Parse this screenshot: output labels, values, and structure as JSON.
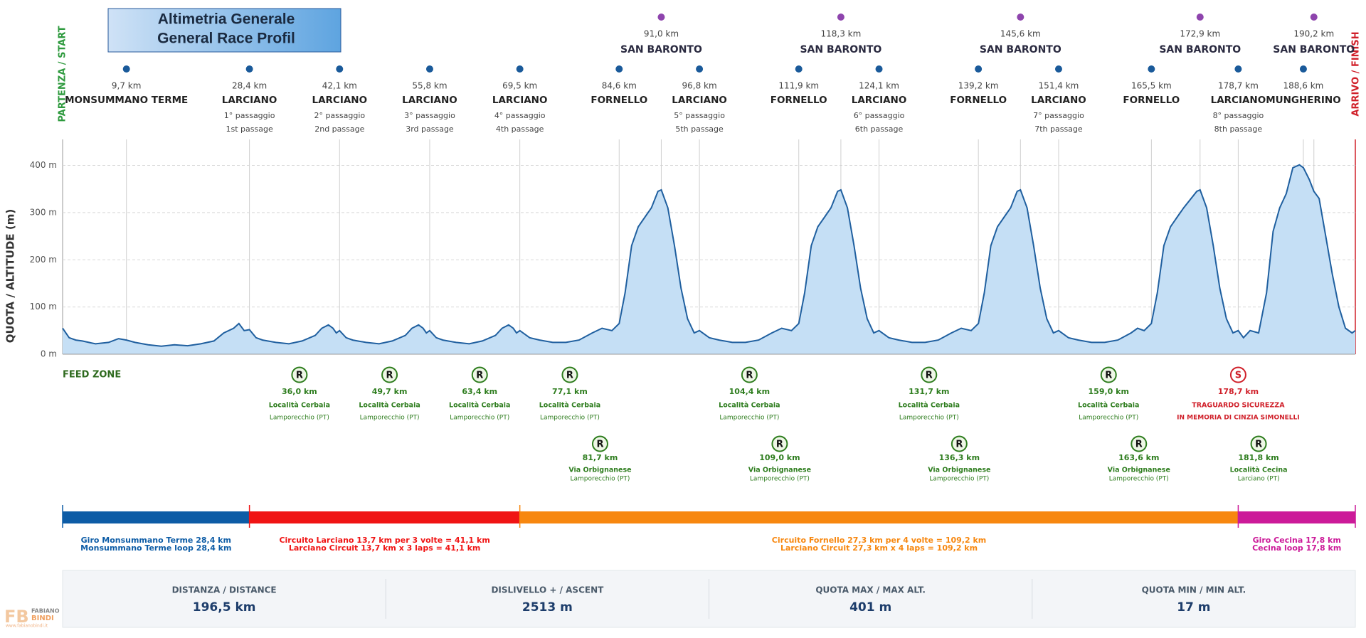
{
  "chart_data": {
    "type": "area",
    "title": [
      "Altimetria Generale",
      "General Race Profil"
    ],
    "ylabel": "QUOTA / ALTITUDE (m)",
    "start_label": "PARTENZA / START",
    "finish_label": "ARRIVO / FINISH",
    "color": "#1f5f9f",
    "fill": "#c5dff5",
    "grid": true,
    "xlim": [
      0,
      196.5
    ],
    "ylim": [
      0,
      455
    ],
    "yticks": [
      {
        "value": 0,
        "label": "0 m"
      },
      {
        "value": 100,
        "label": "100 m"
      },
      {
        "value": 200,
        "label": "200 m"
      },
      {
        "value": 300,
        "label": "300 m"
      },
      {
        "value": 400,
        "label": "400 m"
      }
    ],
    "x": [
      0,
      1,
      2,
      3,
      5,
      7,
      8.5,
      9.7,
      11,
      13,
      15,
      17,
      19,
      21,
      23,
      24.5,
      26,
      26.8,
      27.6,
      28.4,
      29.4,
      30.4,
      32.4,
      34.4,
      36.4,
      38.4,
      39.4,
      40.4,
      41.1,
      41.6,
      42.1,
      43.1,
      44.1,
      46.1,
      48.1,
      50.1,
      52.1,
      53.1,
      54.1,
      54.8,
      55.3,
      55.8,
      56.8,
      57.8,
      59.8,
      61.8,
      63.8,
      65.8,
      66.8,
      67.8,
      68.5,
      69,
      69.5,
      71,
      72.5,
      74.5,
      76.5,
      78.5,
      80.5,
      82,
      83.5,
      84.6,
      85.5,
      86.5,
      87.5,
      88.5,
      89.5,
      90.5,
      91,
      92,
      93,
      94,
      95,
      96,
      96.8,
      98.3,
      99.8,
      101.8,
      103.8,
      105.8,
      107.8,
      109.3,
      110.8,
      111.9,
      112.8,
      113.8,
      114.8,
      115.8,
      116.8,
      117.8,
      118.3,
      119.3,
      120.3,
      121.3,
      122.3,
      123.3,
      124.1,
      125.6,
      127.1,
      129.1,
      131.1,
      133.1,
      135.1,
      136.6,
      138.1,
      139.2,
      140.1,
      141.1,
      142.1,
      143.1,
      144.1,
      145.1,
      145.6,
      146.6,
      147.6,
      148.6,
      149.6,
      150.6,
      151.4,
      152.9,
      154.4,
      156.4,
      158.4,
      160.4,
      162.4,
      163.4,
      164.4,
      165.5,
      166.4,
      167.4,
      168.4,
      169.4,
      170.4,
      172.4,
      172.9,
      173.9,
      174.9,
      175.9,
      176.9,
      177.9,
      178.7,
      179.5,
      180.5,
      181.8,
      183,
      184,
      185,
      186,
      187,
      188,
      188.6,
      189.5,
      190.2,
      191,
      192,
      193,
      194,
      195,
      196,
      196.5
    ],
    "values": [
      55,
      35,
      30,
      28,
      22,
      25,
      33,
      30,
      25,
      20,
      17,
      20,
      18,
      22,
      28,
      45,
      55,
      65,
      50,
      52,
      35,
      30,
      25,
      22,
      28,
      40,
      55,
      62,
      55,
      45,
      50,
      35,
      30,
      25,
      22,
      28,
      40,
      55,
      62,
      55,
      45,
      50,
      35,
      30,
      25,
      22,
      28,
      40,
      55,
      62,
      55,
      45,
      50,
      35,
      30,
      25,
      25,
      30,
      45,
      55,
      50,
      65,
      130,
      230,
      270,
      290,
      310,
      345,
      348,
      310,
      230,
      140,
      75,
      45,
      50,
      35,
      30,
      25,
      25,
      30,
      45,
      55,
      50,
      65,
      130,
      230,
      270,
      290,
      310,
      345,
      348,
      310,
      230,
      140,
      75,
      45,
      50,
      35,
      30,
      25,
      25,
      30,
      45,
      55,
      50,
      65,
      130,
      230,
      270,
      290,
      310,
      345,
      348,
      310,
      230,
      140,
      75,
      45,
      50,
      35,
      30,
      25,
      25,
      30,
      45,
      55,
      50,
      65,
      130,
      230,
      270,
      290,
      310,
      345,
      348,
      310,
      230,
      140,
      75,
      45,
      50,
      35,
      50,
      45,
      130,
      260,
      310,
      340,
      395,
      401,
      395,
      370,
      345,
      330,
      250,
      170,
      100,
      55,
      45,
      50
    ],
    "summits": [
      {
        "x": 91.0,
        "label": "91,0 km",
        "name": "SAN BARONTO"
      },
      {
        "x": 118.3,
        "label": "118,3 km",
        "name": "SAN BARONTO"
      },
      {
        "x": 145.6,
        "label": "145,6 km",
        "name": "SAN BARONTO"
      },
      {
        "x": 172.9,
        "label": "172,9 km",
        "name": "SAN BARONTO"
      },
      {
        "x": 190.2,
        "label": "190,2 km",
        "name": "SAN BARONTO"
      }
    ],
    "summit_color": "#8e44ad",
    "waypoint_color": "#1a5a9a",
    "waypoints": [
      {
        "x": 9.7,
        "label": "9,7 km",
        "name": "MONSUMMANO TERME"
      },
      {
        "x": 28.4,
        "label": "28,4 km",
        "name": "LARCIANO",
        "lap": "1° passaggio",
        "lap_en": "1st passage"
      },
      {
        "x": 42.1,
        "label": "42,1 km",
        "name": "LARCIANO",
        "lap": "2° passaggio",
        "lap_en": "2nd passage"
      },
      {
        "x": 55.8,
        "label": "55,8 km",
        "name": "LARCIANO",
        "lap": "3° passaggio",
        "lap_en": "3rd passage"
      },
      {
        "x": 69.5,
        "label": "69,5 km",
        "name": "LARCIANO",
        "lap": "4° passaggio",
        "lap_en": "4th passage"
      },
      {
        "x": 84.6,
        "label": "84,6 km",
        "name": "FORNELLO"
      },
      {
        "x": 96.8,
        "label": "96,8 km",
        "name": "LARCIANO",
        "lap": "5° passaggio",
        "lap_en": "5th passage"
      },
      {
        "x": 111.9,
        "label": "111,9 km",
        "name": "FORNELLO"
      },
      {
        "x": 124.1,
        "label": "124,1 km",
        "name": "LARCIANO",
        "lap": "6° passaggio",
        "lap_en": "6th passage"
      },
      {
        "x": 139.2,
        "label": "139,2 km",
        "name": "FORNELLO"
      },
      {
        "x": 151.4,
        "label": "151,4 km",
        "name": "LARCIANO",
        "lap": "7° passaggio",
        "lap_en": "7th passage"
      },
      {
        "x": 165.5,
        "label": "165,5 km",
        "name": "FORNELLO"
      },
      {
        "x": 178.7,
        "label": "178,7 km",
        "name": "LARCIANO",
        "lap": "8° passaggio",
        "lap_en": "8th passage"
      },
      {
        "x": 188.6,
        "label": "188,6 km",
        "name": "MUNGHERINO"
      }
    ],
    "feed_zone_title": "FEED ZONE",
    "feed_zones_upper": [
      {
        "x": 36.0,
        "icon": "R",
        "label": "36,0 km",
        "place": "Località Cerbaia",
        "sub": "Lamporecchio (PT)",
        "color": "#2e7d1e"
      },
      {
        "x": 49.7,
        "icon": "R",
        "label": "49,7 km",
        "place": "Località Cerbaia",
        "sub": "Lamporecchio (PT)",
        "color": "#2e7d1e"
      },
      {
        "x": 63.4,
        "icon": "R",
        "label": "63,4 km",
        "place": "Località Cerbaia",
        "sub": "Lamporecchio (PT)",
        "color": "#2e7d1e"
      },
      {
        "x": 77.1,
        "icon": "R",
        "label": "77,1 km",
        "place": "Località Cerbaia",
        "sub": "Lamporecchio (PT)",
        "color": "#2e7d1e"
      },
      {
        "x": 104.4,
        "icon": "R",
        "label": "104,4 km",
        "place": "Località Cerbaia",
        "sub": "Lamporecchio (PT)",
        "color": "#2e7d1e"
      },
      {
        "x": 131.7,
        "icon": "R",
        "label": "131,7 km",
        "place": "Località Cerbaia",
        "sub": "Lamporecchio (PT)",
        "color": "#2e7d1e"
      },
      {
        "x": 159.0,
        "icon": "R",
        "label": "159,0 km",
        "place": "Località Cerbaia",
        "sub": "Lamporecchio (PT)",
        "color": "#2e7d1e"
      },
      {
        "x": 178.7,
        "icon": "S",
        "label": "178,7 km",
        "place": "TRAGUARDO SICUREZZA",
        "sub": "IN MEMORIA DI CINZIA SIMONELLI",
        "color": "#d0202a"
      }
    ],
    "feed_zones_lower": [
      {
        "x": 81.7,
        "icon": "R",
        "label": "81,7 km",
        "place": "Via Orbignanese",
        "sub": "Lamporecchio (PT)",
        "color": "#2e7d1e"
      },
      {
        "x": 109.0,
        "icon": "R",
        "label": "109,0 km",
        "place": "Via Orbignanese",
        "sub": "Lamporecchio (PT)",
        "color": "#2e7d1e"
      },
      {
        "x": 136.3,
        "icon": "R",
        "label": "136,3 km",
        "place": "Via Orbignanese",
        "sub": "Lamporecchio (PT)",
        "color": "#2e7d1e"
      },
      {
        "x": 163.6,
        "icon": "R",
        "label": "163,6 km",
        "place": "Via Orbignanese",
        "sub": "Lamporecchio (PT)",
        "color": "#2e7d1e"
      },
      {
        "x": 181.8,
        "icon": "R",
        "label": "181,8 km",
        "place": "Località Cecina",
        "sub": "Larciano (PT)",
        "color": "#2e7d1e"
      }
    ],
    "circuits": [
      {
        "from": 0,
        "to": 28.4,
        "color": "#0d5ca6",
        "label": [
          "Giro Monsummano Terme 28,4 km",
          "Monsummano Terme loop 28,4 km"
        ]
      },
      {
        "from": 28.4,
        "to": 69.5,
        "color": "#f01414",
        "label": [
          "Circuito Larciano 13,7 km per 3 volte = 41,1 km",
          "Larciano Circuit 13,7 km x 3 laps = 41,1 km"
        ]
      },
      {
        "from": 69.5,
        "to": 178.7,
        "color": "#f7870f",
        "label": [
          "Circuito Fornello 27,3 km per 4 volte = 109,2 km",
          "Larciano Circuit 27,3 km x 4 laps = 109,2 km"
        ]
      },
      {
        "from": 178.7,
        "to": 196.5,
        "color": "#cc1a99",
        "label": [
          "Giro Cecina 17,8 km",
          "Cecina loop 17,8 km"
        ]
      }
    ]
  },
  "stats": [
    {
      "label": "DISTANZA / DISTANCE",
      "value": "196,5 km"
    },
    {
      "label": "DISLIVELLO + / ASCENT",
      "value": "2513 m"
    },
    {
      "label": "QUOTA MAX / MAX ALT.",
      "value": "401 m"
    },
    {
      "label": "QUOTA MIN / MIN ALT.",
      "value": "17 m"
    }
  ],
  "logo": {
    "mark": "FB",
    "name": "FABIANO",
    "surname": "BINDI",
    "site": "www.fabianobindi.it"
  }
}
